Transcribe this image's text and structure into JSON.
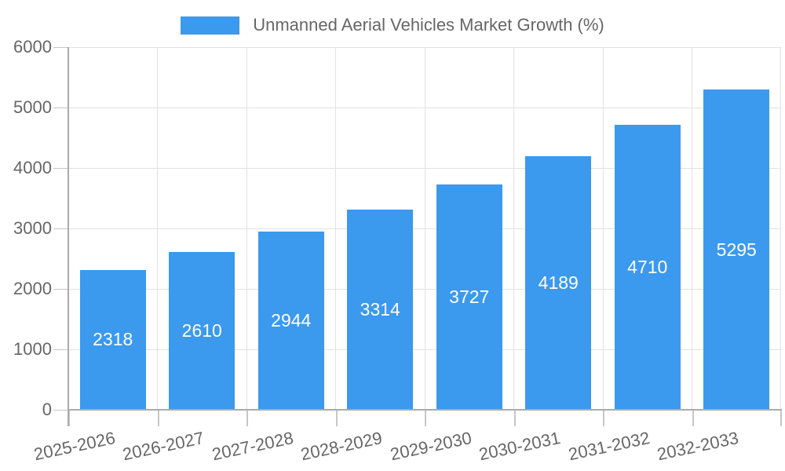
{
  "chart_data": {
    "type": "bar",
    "title": "Unmanned Aerial Vehicles Market Growth (%)",
    "legend_entries": [
      "Unmanned Aerial Vehicles Market Growth (%)"
    ],
    "categories": [
      "2025-2026",
      "2026-2027",
      "2027-2028",
      "2028-2029",
      "2029-2030",
      "2030-2031",
      "2031-2032",
      "2032-2033"
    ],
    "values": [
      2318,
      2610,
      2944,
      3314,
      3727,
      4189,
      4710,
      5295
    ],
    "xlabel": "",
    "ylabel": "",
    "ylim": [
      0,
      6000
    ],
    "yticks": [
      0,
      1000,
      2000,
      3000,
      4000,
      5000,
      6000
    ],
    "grid": true,
    "legend_position": "top-center",
    "x_tick_rotation_deg": -12,
    "colors": {
      "bar": "#3B99EE",
      "bar_label": "#FFFFFF",
      "axis_text": "#666666",
      "gridline": "#E2E2E2",
      "axis_line": "#ABABAB",
      "tick": "#C6C6C6",
      "background": "#FFFFFF"
    }
  }
}
